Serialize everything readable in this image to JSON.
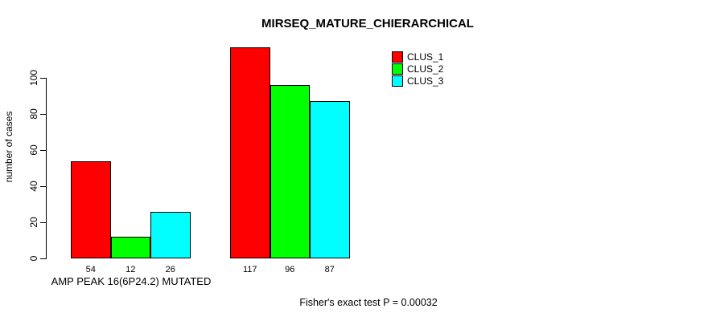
{
  "chart_data": {
    "type": "bar",
    "title": "MIRSEQ_MATURE_CHIERARCHICAL",
    "ylabel": "number of cases",
    "xlabel": "",
    "ylim": [
      0,
      117
    ],
    "yticks": [
      0,
      20,
      40,
      60,
      80,
      100
    ],
    "grid": false,
    "legend_position": "top-right",
    "series": [
      {
        "name": "CLUS_1",
        "color": "#ff0000"
      },
      {
        "name": "CLUS_2",
        "color": "#00ff00"
      },
      {
        "name": "CLUS_3",
        "color": "#00ffff"
      }
    ],
    "groups": [
      {
        "label": "AMP PEAK 16(6P24.2) MUTATED",
        "values": [
          54,
          12,
          26
        ]
      },
      {
        "label": "",
        "values": [
          117,
          96,
          87
        ]
      }
    ],
    "annotation": "Fisher's exact test P = 0.00032"
  },
  "colors": {
    "background": "#ffffff",
    "axis": "#000000",
    "text": "#000000"
  }
}
